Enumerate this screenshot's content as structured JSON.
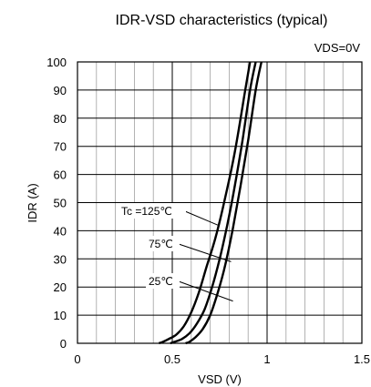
{
  "chart_data": {
    "type": "line",
    "title": "IDR-VSD characteristics (typical)",
    "subtitle": "VDS=0V",
    "xlabel": "VSD (V)",
    "ylabel": "IDR (A)",
    "xlim": [
      0,
      1.5
    ],
    "ylim": [
      0,
      100
    ],
    "xticks": [
      "0",
      "0.5",
      "1",
      "1.5"
    ],
    "xtick_values": [
      0,
      0.5,
      1,
      1.5
    ],
    "yticks": [
      "0",
      "10",
      "20",
      "30",
      "40",
      "50",
      "60",
      "70",
      "80",
      "90",
      "100"
    ],
    "ytick_values": [
      0,
      10,
      20,
      30,
      40,
      50,
      60,
      70,
      80,
      90,
      100
    ],
    "grid": true,
    "series": [
      {
        "name": "Tc =125℃",
        "x": [
          0.43,
          0.45,
          0.48,
          0.52,
          0.56,
          0.6,
          0.64,
          0.68,
          0.73,
          0.78,
          0.83,
          0.88,
          0.91
        ],
        "y": [
          0,
          0.5,
          1.5,
          3,
          6,
          11,
          18,
          27,
          38,
          52,
          68,
          88,
          100
        ]
      },
      {
        "name": "75℃",
        "x": [
          0.49,
          0.51,
          0.55,
          0.59,
          0.63,
          0.67,
          0.71,
          0.75,
          0.79,
          0.83,
          0.87,
          0.91,
          0.94
        ],
        "y": [
          0,
          0.5,
          1.5,
          3.5,
          7,
          12,
          20,
          30,
          42,
          56,
          72,
          90,
          100
        ]
      },
      {
        "name": "25℃",
        "x": [
          0.57,
          0.59,
          0.62,
          0.66,
          0.7,
          0.74,
          0.78,
          0.82,
          0.86,
          0.9,
          0.94,
          0.97
        ],
        "y": [
          0,
          0.5,
          2,
          5,
          10,
          18,
          28,
          41,
          56,
          72,
          90,
          100
        ]
      }
    ],
    "annotations": [
      {
        "text": "Tc =125℃",
        "series": 0,
        "x": 0.74,
        "y": 42
      },
      {
        "text": "75℃",
        "series": 1,
        "x": 0.81,
        "y": 29
      },
      {
        "text": "25℃",
        "series": 2,
        "x": 0.82,
        "y": 15
      }
    ]
  }
}
